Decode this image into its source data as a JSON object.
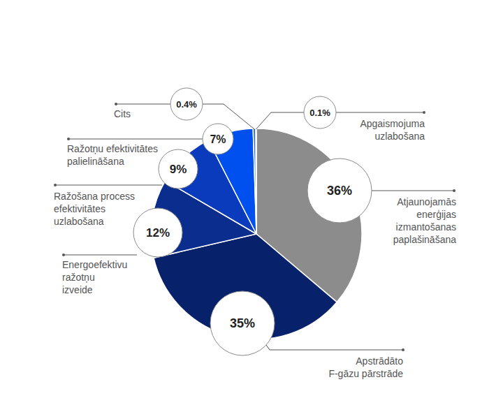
{
  "chart_data": {
    "type": "pie",
    "categories": [
      "Atjaunojamās enerģijas izmantošanas paplašināšana",
      "Apstrādāto F-gāzu pārstrāde",
      "Energoefektivu ražotņu izveide",
      "Ražošana process efektivitātes uzlabošana",
      "Ražotņu efektivitātes palielināšana",
      "Cits",
      "Apgaismojuma uzlabošana"
    ],
    "values": [
      36,
      35,
      12,
      9,
      7,
      0.4,
      0.1
    ],
    "value_labels": [
      "36%",
      "35%",
      "12%",
      "9%",
      "7%",
      "0.4%",
      "0.1%"
    ],
    "colors": [
      "#8c8c8c",
      "#07226b",
      "#0b2e8e",
      "#0a3bbd",
      "#0050ef",
      "#2e6cf0",
      "#6b97f3"
    ],
    "data_labels": true
  }
}
